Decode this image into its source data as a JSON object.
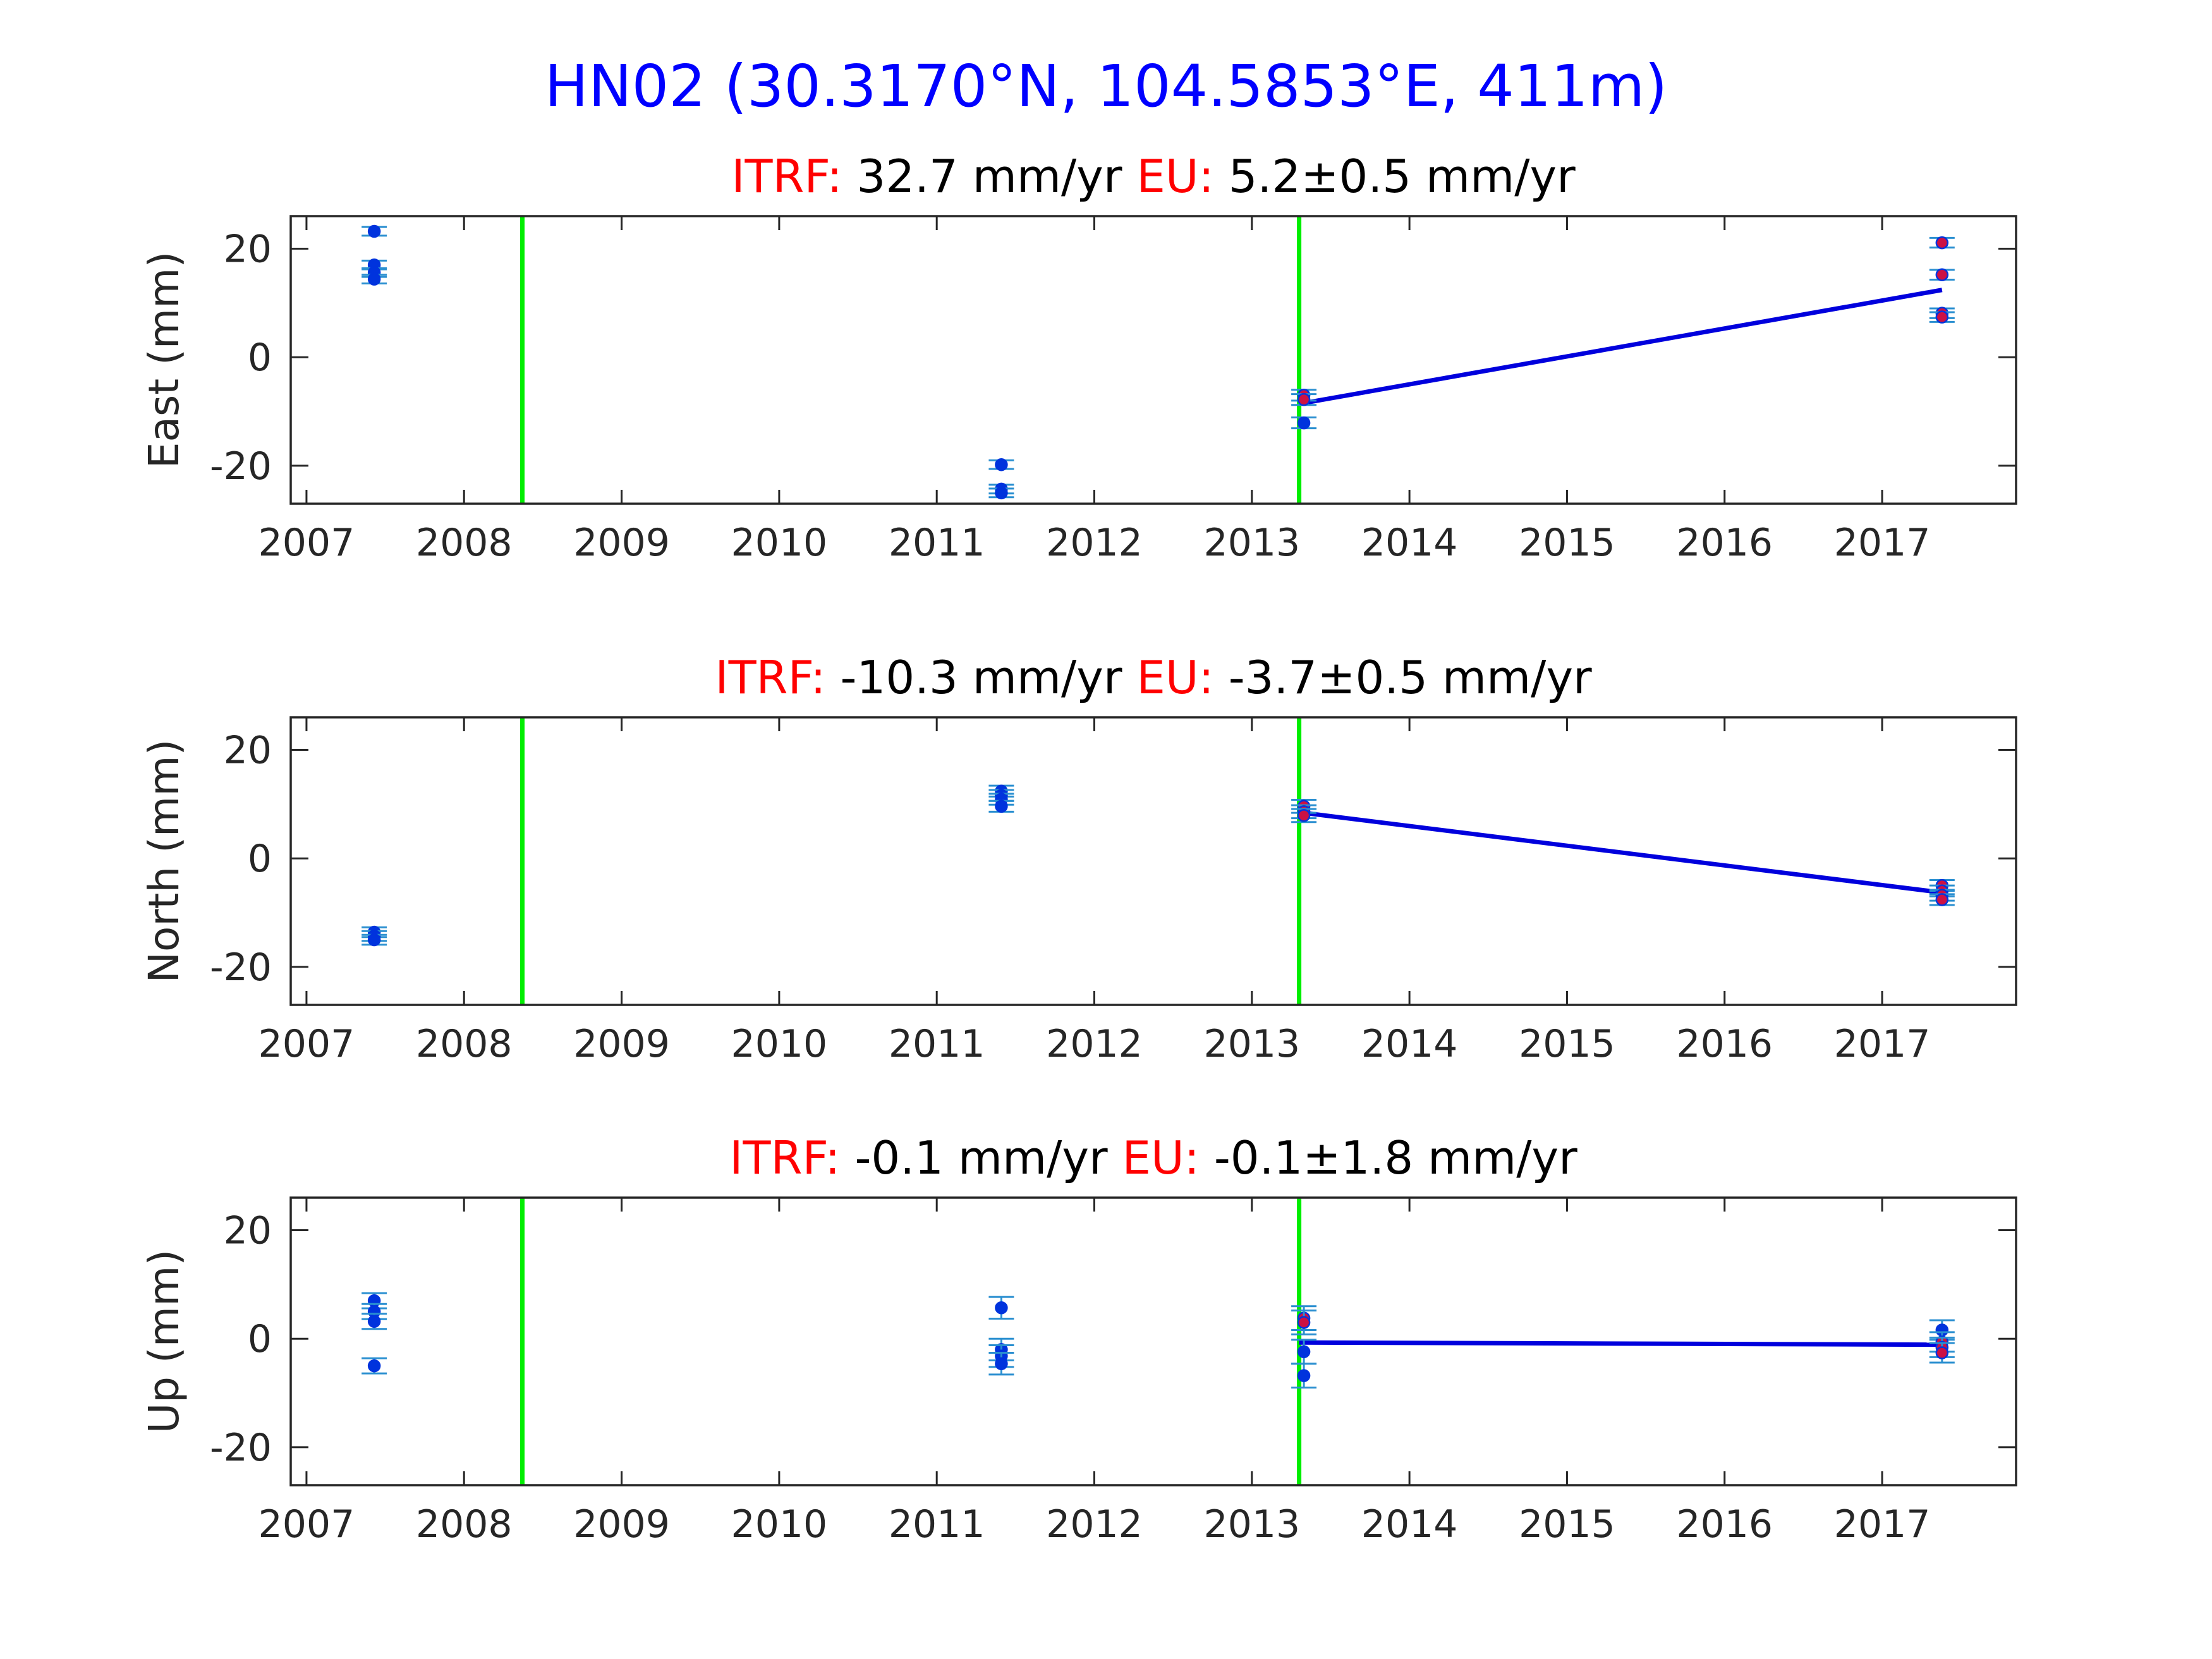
{
  "title": "HN02 (30.3170°N, 104.5853°E, 411m)",
  "colors": {
    "title": "#0000ff",
    "label_red": "#ff0000",
    "text": "#000000",
    "axis": "#262626",
    "event_line": "#00ee00",
    "fit_line": "#0000dd",
    "point_blue": "#0033dd",
    "point_red": "#cc1144",
    "errorbar": "#2a8fd0"
  },
  "chart_data": [
    {
      "type": "scatter",
      "component": "East",
      "ylabel": "East (mm)",
      "rates": {
        "itrf_label": "ITRF:",
        "itrf_value": "32.7 mm/yr",
        "eu_label": "EU:",
        "eu_value": "5.2±0.5 mm/yr"
      },
      "xlim": [
        2006.9,
        2017.85
      ],
      "ylim": [
        -27,
        26
      ],
      "x_ticks": [
        "2007",
        "2008",
        "2009",
        "2010",
        "2011",
        "2012",
        "2013",
        "2014",
        "2015",
        "2016",
        "2017"
      ],
      "y_ticks": [
        "20",
        "0",
        "-20"
      ],
      "event_lines": [
        2008.37,
        2013.3
      ],
      "fit": {
        "x": [
          2013.3,
          2017.38
        ],
        "y": [
          -8.6,
          12.4
        ]
      },
      "points": [
        {
          "x": 2007.43,
          "y": 23.2,
          "err": 0.8,
          "c": "blue"
        },
        {
          "x": 2007.43,
          "y": 17.0,
          "err": 0.8,
          "c": "blue"
        },
        {
          "x": 2007.43,
          "y": 15.6,
          "err": 0.8,
          "c": "blue"
        },
        {
          "x": 2007.43,
          "y": 14.4,
          "err": 0.8,
          "c": "blue"
        },
        {
          "x": 2011.41,
          "y": -19.8,
          "err": 0.8,
          "c": "blue"
        },
        {
          "x": 2011.41,
          "y": -24.3,
          "err": 0.8,
          "c": "blue"
        },
        {
          "x": 2011.41,
          "y": -25.0,
          "err": 0.8,
          "c": "blue"
        },
        {
          "x": 2013.33,
          "y": -7.0,
          "err": 1.0,
          "c": "red"
        },
        {
          "x": 2013.33,
          "y": -7.8,
          "err": 1.0,
          "c": "red"
        },
        {
          "x": 2013.33,
          "y": -12.1,
          "err": 1.0,
          "c": "blue"
        },
        {
          "x": 2017.38,
          "y": 21.1,
          "err": 0.9,
          "c": "red"
        },
        {
          "x": 2017.38,
          "y": 15.2,
          "err": 0.9,
          "c": "red"
        },
        {
          "x": 2017.38,
          "y": 8.1,
          "err": 0.9,
          "c": "red"
        },
        {
          "x": 2017.38,
          "y": 7.4,
          "err": 0.9,
          "c": "red"
        }
      ]
    },
    {
      "type": "scatter",
      "component": "North",
      "ylabel": "North (mm)",
      "rates": {
        "itrf_label": "ITRF:",
        "itrf_value": "-10.3 mm/yr",
        "eu_label": "EU:",
        "eu_value": "-3.7±0.5 mm/yr"
      },
      "xlim": [
        2006.9,
        2017.85
      ],
      "ylim": [
        -27,
        26
      ],
      "x_ticks": [
        "2007",
        "2008",
        "2009",
        "2010",
        "2011",
        "2012",
        "2013",
        "2014",
        "2015",
        "2016",
        "2017"
      ],
      "y_ticks": [
        "20",
        "0",
        "-20"
      ],
      "event_lines": [
        2008.37,
        2013.3
      ],
      "fit": {
        "x": [
          2013.3,
          2017.38
        ],
        "y": [
          8.5,
          -6.3
        ]
      },
      "points": [
        {
          "x": 2007.43,
          "y": -13.6,
          "err": 0.9,
          "c": "blue"
        },
        {
          "x": 2007.43,
          "y": -14.3,
          "err": 0.9,
          "c": "blue"
        },
        {
          "x": 2007.43,
          "y": -15.0,
          "err": 0.9,
          "c": "blue"
        },
        {
          "x": 2011.41,
          "y": 12.4,
          "err": 1.0,
          "c": "blue"
        },
        {
          "x": 2011.41,
          "y": 11.6,
          "err": 1.0,
          "c": "blue"
        },
        {
          "x": 2011.41,
          "y": 10.9,
          "err": 1.0,
          "c": "blue"
        },
        {
          "x": 2011.41,
          "y": 9.6,
          "err": 1.0,
          "c": "blue"
        },
        {
          "x": 2013.33,
          "y": 9.6,
          "err": 1.2,
          "c": "red"
        },
        {
          "x": 2013.33,
          "y": 8.6,
          "err": 1.2,
          "c": "red"
        },
        {
          "x": 2013.33,
          "y": 7.9,
          "err": 1.2,
          "c": "red"
        },
        {
          "x": 2017.38,
          "y": -5.0,
          "err": 1.0,
          "c": "red"
        },
        {
          "x": 2017.38,
          "y": -6.0,
          "err": 1.0,
          "c": "red"
        },
        {
          "x": 2017.38,
          "y": -6.8,
          "err": 1.0,
          "c": "red"
        },
        {
          "x": 2017.38,
          "y": -7.6,
          "err": 1.0,
          "c": "red"
        }
      ]
    },
    {
      "type": "scatter",
      "component": "Up",
      "ylabel": "Up (mm)",
      "rates": {
        "itrf_label": "ITRF:",
        "itrf_value": "-0.1 mm/yr",
        "eu_label": "EU:",
        "eu_value": "-0.1±1.8 mm/yr"
      },
      "xlim": [
        2006.9,
        2017.85
      ],
      "ylim": [
        -27,
        26
      ],
      "x_ticks": [
        "2007",
        "2008",
        "2009",
        "2010",
        "2011",
        "2012",
        "2013",
        "2014",
        "2015",
        "2016",
        "2017"
      ],
      "y_ticks": [
        "20",
        "0",
        "-20"
      ],
      "event_lines": [
        2008.37,
        2013.3
      ],
      "fit": {
        "x": [
          2013.3,
          2017.38
        ],
        "y": [
          -0.7,
          -1.1
        ]
      },
      "points": [
        {
          "x": 2007.43,
          "y": 7.0,
          "err": 1.4,
          "c": "blue"
        },
        {
          "x": 2007.43,
          "y": 5.0,
          "err": 1.4,
          "c": "blue"
        },
        {
          "x": 2007.43,
          "y": 3.2,
          "err": 1.4,
          "c": "blue"
        },
        {
          "x": 2007.43,
          "y": -5.0,
          "err": 1.4,
          "c": "blue"
        },
        {
          "x": 2011.41,
          "y": 5.7,
          "err": 2.0,
          "c": "blue"
        },
        {
          "x": 2011.41,
          "y": -2.0,
          "err": 2.0,
          "c": "blue"
        },
        {
          "x": 2011.41,
          "y": -3.2,
          "err": 2.0,
          "c": "blue"
        },
        {
          "x": 2011.41,
          "y": -4.6,
          "err": 2.0,
          "c": "blue"
        },
        {
          "x": 2013.33,
          "y": 3.8,
          "err": 2.2,
          "c": "red"
        },
        {
          "x": 2013.33,
          "y": 3.0,
          "err": 2.2,
          "c": "red"
        },
        {
          "x": 2013.33,
          "y": -2.4,
          "err": 2.2,
          "c": "blue"
        },
        {
          "x": 2013.33,
          "y": -6.8,
          "err": 2.2,
          "c": "blue"
        },
        {
          "x": 2017.38,
          "y": 1.6,
          "err": 1.8,
          "c": "blue"
        },
        {
          "x": 2017.38,
          "y": -0.6,
          "err": 1.8,
          "c": "red"
        },
        {
          "x": 2017.38,
          "y": -1.6,
          "err": 1.8,
          "c": "red"
        },
        {
          "x": 2017.38,
          "y": -2.6,
          "err": 1.8,
          "c": "red"
        }
      ]
    }
  ]
}
